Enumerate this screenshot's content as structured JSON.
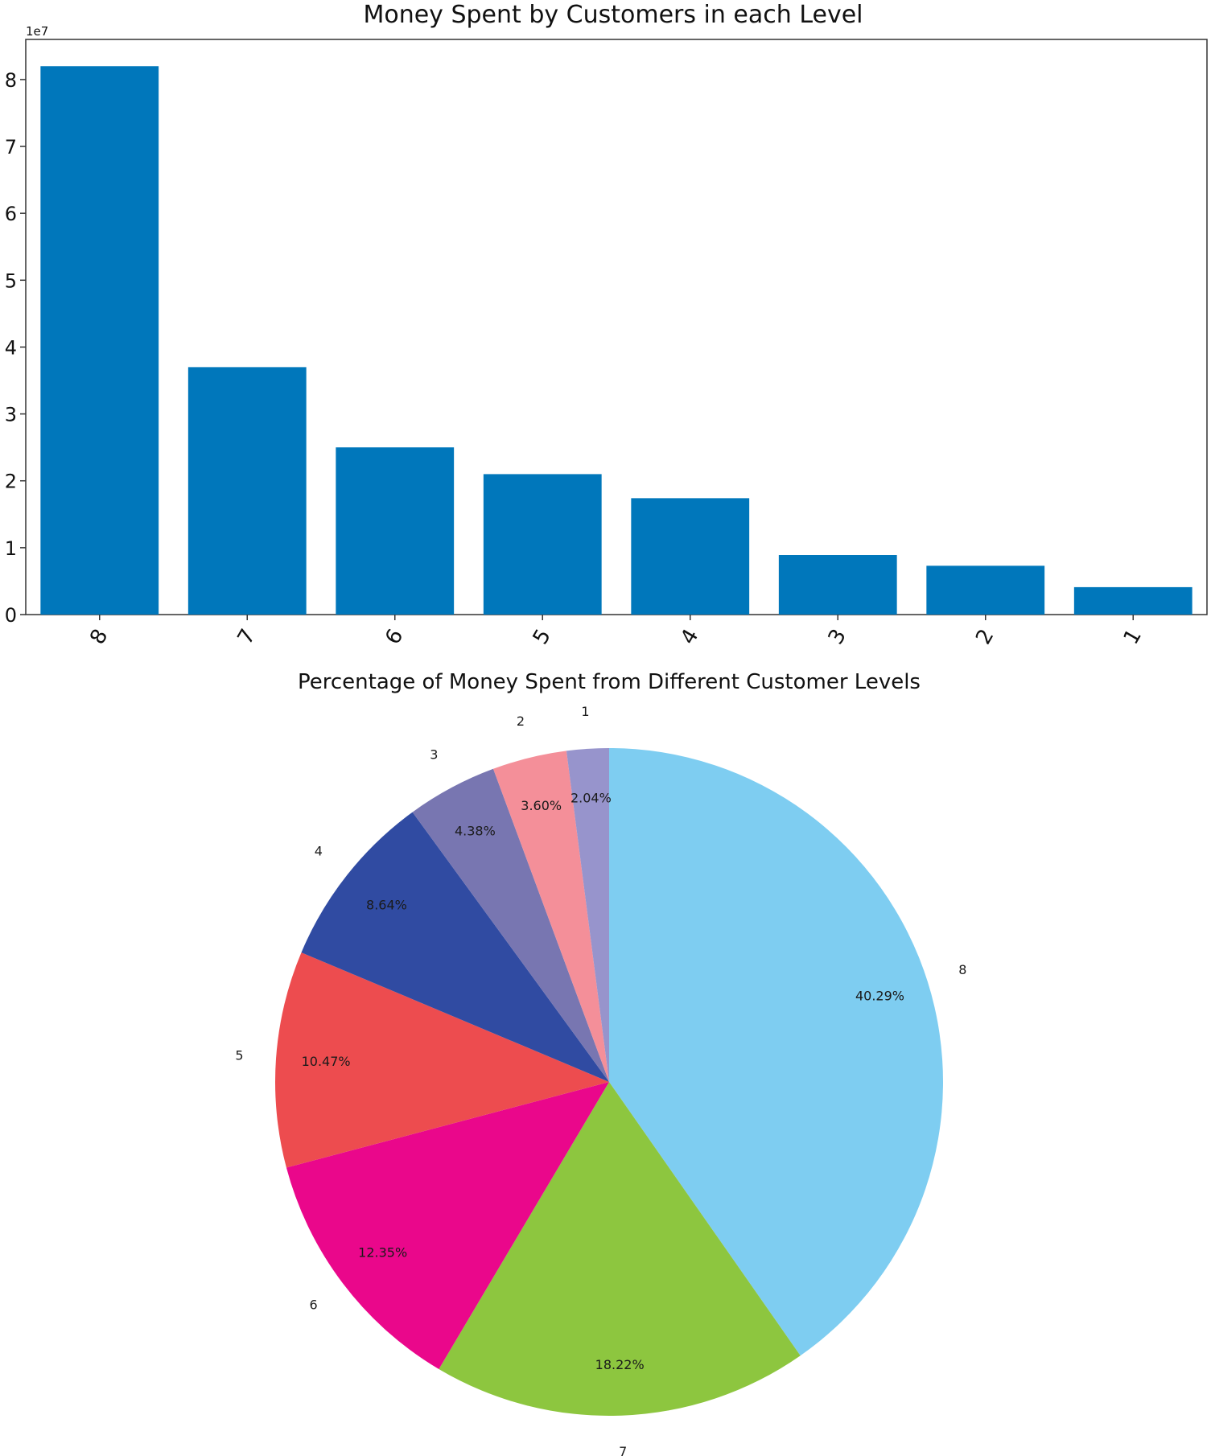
{
  "chart_data": [
    {
      "type": "bar",
      "title": "Money Spent by Customers in each Level",
      "categories": [
        "8",
        "7",
        "6",
        "5",
        "4",
        "3",
        "2",
        "1"
      ],
      "values": [
        82000000,
        37000000,
        25000000,
        21000000,
        17400000,
        8900000,
        7300000,
        4100000
      ],
      "xlabel": "",
      "ylabel": "",
      "ylim": [
        0,
        86000000
      ],
      "ytick_values": [
        0,
        1,
        2,
        3,
        4,
        5,
        6,
        7,
        8
      ],
      "ytick_labels": [
        "0",
        "1",
        "2",
        "3",
        "4",
        "5",
        "6",
        "7",
        "8"
      ],
      "y_offset_label": "1e7",
      "xtick_rotation_deg": -60,
      "bar_color": "#0077bb",
      "grid": false,
      "legend": "none"
    },
    {
      "type": "pie",
      "title": "Percentage of Money Spent from Different Customer Levels",
      "labels": [
        "8",
        "7",
        "6",
        "5",
        "4",
        "3",
        "2",
        "1"
      ],
      "values": [
        40.29,
        18.22,
        12.35,
        10.47,
        8.64,
        4.38,
        3.6,
        2.04
      ],
      "percent_labels": [
        "40.29%",
        "18.22%",
        "12.35%",
        "10.47%",
        "8.64%",
        "4.38%",
        "3.60%",
        "2.04%"
      ],
      "colors": [
        "#7ecdf1",
        "#8dc63f",
        "#ea078b",
        "#ed4c4f",
        "#304ba2",
        "#7876b1",
        "#f48f99",
        "#9794cc"
      ],
      "start_angle_deg": 90,
      "direction": "clockwise",
      "legend": "none"
    }
  ]
}
